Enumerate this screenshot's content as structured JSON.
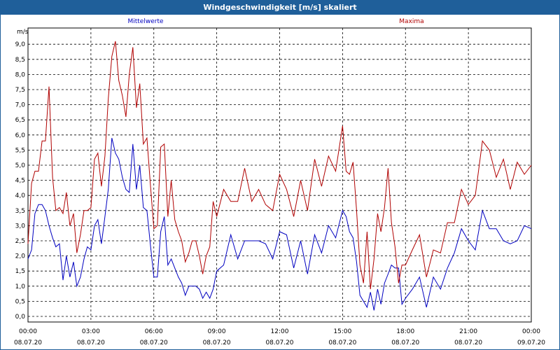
{
  "title": "Windgeschwindigkeit [m/s] skaliert",
  "chart_data": {
    "type": "line",
    "ylabel": "m/s",
    "ylim": [
      0,
      9.5
    ],
    "grid": true,
    "yticks": [
      "0,0",
      "0,5",
      "1,0",
      "1,5",
      "2,0",
      "2,5",
      "3,0",
      "3,5",
      "4,0",
      "4,5",
      "5,0",
      "5,5",
      "6,0",
      "6,5",
      "7,0",
      "7,5",
      "8,0",
      "8,5",
      "9,0"
    ],
    "xticks": [
      {
        "time": "00:00",
        "date": "08.07.20"
      },
      {
        "time": "03:00",
        "date": "08.07.20"
      },
      {
        "time": "06:00",
        "date": "08.07.20"
      },
      {
        "time": "09:00",
        "date": "08.07.20"
      },
      {
        "time": "12:00",
        "date": "08.07.20"
      },
      {
        "time": "15:00",
        "date": "08.07.20"
      },
      {
        "time": "18:00",
        "date": "08.07.20"
      },
      {
        "time": "21:00",
        "date": "08.07.20"
      },
      {
        "time": "00:00",
        "date": "09.07.20"
      }
    ],
    "x_hours": [
      0,
      0.17,
      0.33,
      0.5,
      0.67,
      0.83,
      1,
      1.17,
      1.33,
      1.5,
      1.67,
      1.83,
      2,
      2.17,
      2.33,
      2.5,
      2.67,
      2.83,
      3,
      3.17,
      3.33,
      3.5,
      3.67,
      3.83,
      4,
      4.17,
      4.33,
      4.5,
      4.67,
      4.83,
      5,
      5.17,
      5.33,
      5.5,
      5.67,
      5.83,
      6,
      6.17,
      6.33,
      6.5,
      6.67,
      6.83,
      7,
      7.17,
      7.33,
      7.5,
      7.67,
      7.83,
      8,
      8.17,
      8.33,
      8.5,
      8.67,
      8.83,
      9,
      9.33,
      9.67,
      10,
      10.33,
      10.67,
      11,
      11.33,
      11.67,
      12,
      12.33,
      12.67,
      13,
      13.33,
      13.67,
      14,
      14.33,
      14.67,
      15,
      15.17,
      15.33,
      15.5,
      15.67,
      15.83,
      16,
      16.17,
      16.33,
      16.5,
      16.67,
      16.83,
      17,
      17.17,
      17.33,
      17.5,
      17.67,
      17.83,
      18,
      18.33,
      18.67,
      19,
      19.33,
      19.67,
      20,
      20.33,
      20.67,
      21,
      21.33,
      21.67,
      22,
      22.33,
      22.67,
      23,
      23.33,
      23.67,
      24
    ],
    "series": [
      {
        "name": "Mittelwerte",
        "color": "#0000c0",
        "values": [
          1.9,
          2.2,
          3.4,
          3.7,
          3.7,
          3.5,
          3.0,
          2.6,
          2.3,
          2.4,
          1.2,
          2.0,
          1.3,
          1.8,
          1.0,
          1.3,
          1.9,
          2.3,
          2.2,
          3.0,
          3.2,
          2.4,
          3.3,
          4.2,
          5.9,
          5.4,
          5.2,
          4.6,
          4.2,
          4.1,
          5.7,
          4.2,
          5.0,
          3.6,
          3.5,
          2.4,
          1.3,
          1.3,
          2.8,
          3.3,
          1.7,
          1.9,
          1.6,
          1.3,
          1.1,
          0.7,
          1.0,
          1.0,
          1.0,
          0.9,
          0.6,
          0.8,
          0.6,
          0.9,
          1.5,
          1.7,
          2.7,
          1.9,
          2.5,
          2.5,
          2.5,
          2.4,
          1.9,
          2.8,
          2.7,
          1.6,
          2.5,
          1.4,
          2.7,
          2.1,
          3.0,
          2.6,
          3.5,
          3.3,
          2.8,
          2.6,
          1.8,
          0.7,
          0.5,
          0.3,
          0.8,
          0.2,
          0.9,
          0.4,
          1.1,
          1.4,
          1.7,
          1.6,
          1.6,
          0.4,
          0.6,
          0.9,
          1.3,
          0.3,
          1.3,
          0.9,
          1.6,
          2.1,
          2.9,
          2.5,
          2.2,
          3.5,
          2.9,
          2.9,
          2.5,
          2.4,
          2.5,
          3.0,
          2.9
        ]
      },
      {
        "name": "Maxima",
        "color": "#b00000",
        "values": [
          2.4,
          4.4,
          4.8,
          4.8,
          5.8,
          5.8,
          7.6,
          4.6,
          3.5,
          3.6,
          3.4,
          4.1,
          3.0,
          3.4,
          2.1,
          2.7,
          3.5,
          3.5,
          3.6,
          5.2,
          5.4,
          4.3,
          5.3,
          7.2,
          8.6,
          9.1,
          7.8,
          7.3,
          6.6,
          8.0,
          8.9,
          6.9,
          7.7,
          5.7,
          5.9,
          4.4,
          2.9,
          3.0,
          5.6,
          5.7,
          3.3,
          4.5,
          3.2,
          2.8,
          2.5,
          1.8,
          2.1,
          2.5,
          2.5,
          2.0,
          1.4,
          2.0,
          2.3,
          3.8,
          3.3,
          4.2,
          3.8,
          3.8,
          4.9,
          3.8,
          4.2,
          3.7,
          3.5,
          4.7,
          4.2,
          3.3,
          4.5,
          3.5,
          5.2,
          4.3,
          5.3,
          4.8,
          6.3,
          4.8,
          4.7,
          5.1,
          3.5,
          1.7,
          1.1,
          2.8,
          0.9,
          1.9,
          3.4,
          2.8,
          3.6,
          4.9,
          3.1,
          2.3,
          1.1,
          1.7,
          1.7,
          2.2,
          2.7,
          1.3,
          2.2,
          2.1,
          3.1,
          3.1,
          4.2,
          3.7,
          4.0,
          5.8,
          5.5,
          4.6,
          5.2,
          4.2,
          5.1,
          4.7,
          5.0
        ]
      }
    ]
  }
}
